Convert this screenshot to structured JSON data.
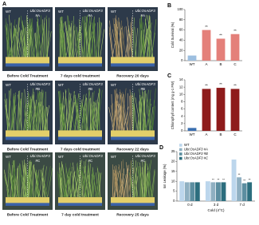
{
  "photo_panel": {
    "label": "A",
    "rows": [
      {
        "wt": "WT",
        "line": "Ubi:OsADF3",
        "id": "#A",
        "captions": [
          "Before Cold Treatment",
          "7 days cold treatment",
          "Recovery 20 days"
        ]
      },
      {
        "wt": "WT",
        "line": "Ubi:OsADF3",
        "id": "#B",
        "captions": [
          "Before Cold Treatment",
          "7 days cold treatment",
          "Recovery 22 days"
        ]
      },
      {
        "wt": "WT",
        "line": "Ubi:OsADF3",
        "id": "#C",
        "captions": [
          "Before Cold Treatment",
          "7 day cold treatment",
          "Recovery 25 days"
        ]
      }
    ]
  },
  "chart_data": [
    {
      "type": "bar",
      "label": "B",
      "ylabel": "Cold Survival (%)",
      "categories": [
        "WT",
        "A",
        "B",
        "C"
      ],
      "values": [
        10,
        60,
        43,
        52
      ],
      "colors": [
        "#9dbfe0",
        "#e4807a",
        "#e4807a",
        "#e4807a"
      ],
      "annotations": [
        null,
        "**",
        "**",
        "**"
      ],
      "ylim": [
        0,
        100
      ],
      "yticks": [
        0,
        20,
        40,
        60,
        80,
        100
      ]
    },
    {
      "type": "bar",
      "label": "C",
      "ylabel": "Chlorophyll content (mg g-1 FW)",
      "categories": [
        "WT",
        "A",
        "B",
        "C"
      ],
      "values": [
        0.8,
        11.5,
        11.8,
        11.5
      ],
      "colors": [
        "#3a6fb0",
        "#8e1b1b",
        "#8e1b1b",
        "#8e1b1b"
      ],
      "annotations": [
        null,
        "**",
        "**",
        "**"
      ],
      "ylim": [
        0,
        14
      ],
      "yticks": [
        0,
        2,
        4,
        6,
        8,
        10,
        12,
        14
      ]
    },
    {
      "type": "grouped-bar",
      "label": "D",
      "ylabel": "Ion Leakage (%)",
      "xlabel": "Cold (4°C)",
      "categories": [
        "0 d",
        "3 d",
        "7 d"
      ],
      "series": [
        {
          "name": "WT",
          "color": "#bcd6ec",
          "values": [
            10,
            10,
            21
          ],
          "annotations": [
            null,
            null,
            null
          ]
        },
        {
          "name": "Ubi:OsADF3 #A",
          "color": "#8fb0c2",
          "values": [
            9.5,
            9.5,
            12
          ],
          "annotations": [
            null,
            "**",
            "**"
          ]
        },
        {
          "name": "Ubi:OsADF3 #B",
          "color": "#5c8ea0",
          "values": [
            9.5,
            9.5,
            9
          ],
          "annotations": [
            null,
            "**",
            "**"
          ]
        },
        {
          "name": "Ubi:OsADF3 #C",
          "color": "#2c6e7e",
          "values": [
            9.5,
            9.5,
            9.5
          ],
          "annotations": [
            null,
            "**",
            "**"
          ]
        }
      ],
      "ylim": [
        0,
        25
      ],
      "yticks": [
        0,
        5,
        10,
        15,
        20,
        25
      ]
    }
  ]
}
